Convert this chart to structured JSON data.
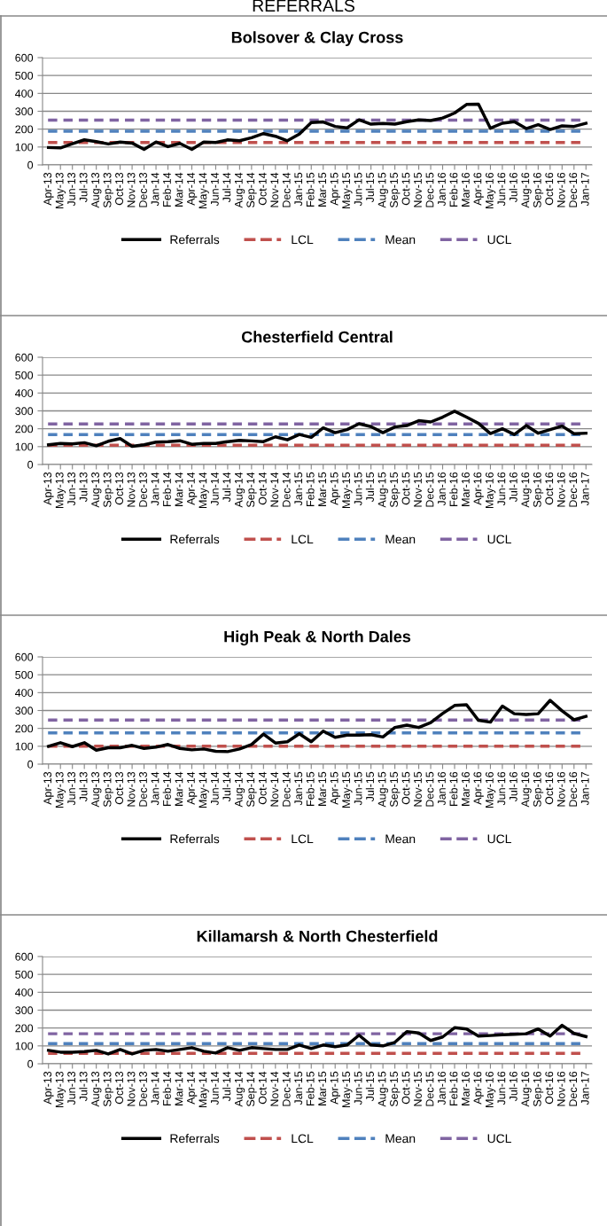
{
  "chart_data": [
    {
      "type": "line",
      "title": "Bolsover & Clay Cross",
      "annotations": [
        "REFERRALS"
      ],
      "categories": [
        "Apr-13",
        "May-13",
        "Jun-13",
        "Jul-13",
        "Aug-13",
        "Sep-13",
        "Oct-13",
        "Nov-13",
        "Dec-13",
        "Jan-14",
        "Feb-14",
        "Mar-14",
        "Apr-14",
        "May-14",
        "Jun-14",
        "Jul-14",
        "Aug-14",
        "Sep-14",
        "Oct-14",
        "Nov-14",
        "Dec-14",
        "Jan-15",
        "Feb-15",
        "Mar-15",
        "Apr-15",
        "May-15",
        "Jun-15",
        "Jul-15",
        "Aug-15",
        "Sep-15",
        "Oct-15",
        "Nov-15",
        "Dec-15",
        "Jan-16",
        "Feb-16",
        "Mar-16",
        "Apr-16",
        "May-16",
        "Jun-16",
        "Jul-16",
        "Aug-16",
        "Sep-16",
        "Oct-16",
        "Nov-16",
        "Dec-16",
        "Jan-17"
      ],
      "series": [
        {
          "name": "Referrals",
          "color": "#000000",
          "values": [
            97,
            95,
            118,
            140,
            130,
            117,
            128,
            122,
            87,
            128,
            102,
            120,
            87,
            128,
            125,
            140,
            135,
            152,
            175,
            160,
            135,
            172,
            237,
            240,
            215,
            207,
            252,
            228,
            232,
            228,
            242,
            252,
            248,
            262,
            290,
            338,
            340,
            205,
            233,
            242,
            203,
            225,
            198,
            218,
            215,
            233
          ]
        }
      ],
      "ref_lines": [
        {
          "axis": "y",
          "value": 125,
          "label": "LCL",
          "color": "#c0504d",
          "line_style": "dashed"
        },
        {
          "axis": "y",
          "value": 188,
          "label": "Mean",
          "color": "#4f81bd",
          "line_style": "dashed"
        },
        {
          "axis": "y",
          "value": 250,
          "label": "UCL",
          "color": "#8064a2",
          "line_style": "dashed"
        }
      ],
      "ylim": [
        0,
        600
      ],
      "yticks": [
        0,
        100,
        200,
        300,
        400,
        500,
        600
      ],
      "grid": "y",
      "legend": "bottom",
      "marker": "none",
      "line_style": "solid"
    },
    {
      "type": "line",
      "title": "Chesterfield Central",
      "categories": [
        "Apr-13",
        "May-13",
        "Jun-13",
        "Jul-13",
        "Aug-13",
        "Sep-13",
        "Oct-13",
        "Nov-13",
        "Dec-13",
        "Jan-14",
        "Feb-14",
        "Mar-14",
        "Apr-14",
        "May-14",
        "Jun-14",
        "Jul-14",
        "Aug-14",
        "Sep-14",
        "Oct-14",
        "Nov-14",
        "Dec-14",
        "Jan-15",
        "Feb-15",
        "Mar-15",
        "Apr-15",
        "May-15",
        "Jun-15",
        "Jul-15",
        "Aug-15",
        "Sep-15",
        "Oct-15",
        "Nov-15",
        "Dec-15",
        "Jan-16",
        "Feb-16",
        "Mar-16",
        "Apr-16",
        "May-16",
        "Jun-16",
        "Jul-16",
        "Aug-16",
        "Sep-16",
        "Oct-16",
        "Nov-16",
        "Dec-16",
        "Jan-17"
      ],
      "series": [
        {
          "name": "Referrals",
          "color": "#000000",
          "values": [
            110,
            118,
            115,
            122,
            105,
            130,
            145,
            102,
            110,
            125,
            128,
            133,
            113,
            118,
            118,
            128,
            135,
            132,
            128,
            155,
            138,
            168,
            152,
            205,
            178,
            195,
            228,
            212,
            178,
            210,
            218,
            245,
            238,
            265,
            298,
            265,
            230,
            173,
            200,
            168,
            218,
            175,
            195,
            215,
            172,
            175
          ]
        }
      ],
      "ref_lines": [
        {
          "axis": "y",
          "value": 108,
          "label": "LCL",
          "color": "#c0504d",
          "line_style": "dashed"
        },
        {
          "axis": "y",
          "value": 167,
          "label": "Mean",
          "color": "#4f81bd",
          "line_style": "dashed"
        },
        {
          "axis": "y",
          "value": 227,
          "label": "UCL",
          "color": "#8064a2",
          "line_style": "dashed"
        }
      ],
      "ylim": [
        0,
        600
      ],
      "yticks": [
        0,
        100,
        200,
        300,
        400,
        500,
        600
      ],
      "grid": "y",
      "legend": "bottom",
      "marker": "none",
      "line_style": "solid"
    },
    {
      "type": "line",
      "title": "High Peak & North Dales",
      "categories": [
        "Apr-13",
        "May-13",
        "Jun-13",
        "Jul-13",
        "Aug-13",
        "Sep-13",
        "Oct-13",
        "Nov-13",
        "Dec-13",
        "Jan-14",
        "Feb-14",
        "Mar-14",
        "Apr-14",
        "May-14",
        "Jun-14",
        "Jul-14",
        "Aug-14",
        "Sep-14",
        "Oct-14",
        "Nov-14",
        "Dec-14",
        "Jan-15",
        "Feb-15",
        "Mar-15",
        "Apr-15",
        "May-15",
        "Jun-15",
        "Jul-15",
        "Aug-15",
        "Sep-15",
        "Oct-15",
        "Nov-15",
        "Dec-15",
        "Jan-16",
        "Feb-16",
        "Mar-16",
        "Apr-16",
        "May-16",
        "Jun-16",
        "Jul-16",
        "Aug-16",
        "Sep-16",
        "Oct-16",
        "Nov-16",
        "Dec-16",
        "Jan-17"
      ],
      "series": [
        {
          "name": "Referrals",
          "color": "#000000",
          "values": [
            100,
            120,
            98,
            120,
            78,
            92,
            92,
            105,
            88,
            95,
            110,
            88,
            80,
            85,
            72,
            70,
            85,
            110,
            168,
            118,
            125,
            170,
            125,
            185,
            150,
            162,
            162,
            165,
            152,
            205,
            218,
            205,
            232,
            283,
            328,
            332,
            245,
            235,
            325,
            282,
            278,
            282,
            357,
            298,
            248,
            267
          ]
        }
      ],
      "ref_lines": [
        {
          "axis": "y",
          "value": 100,
          "label": "LCL",
          "color": "#c0504d",
          "line_style": "dashed"
        },
        {
          "axis": "y",
          "value": 175,
          "label": "Mean",
          "color": "#4f81bd",
          "line_style": "dashed"
        },
        {
          "axis": "y",
          "value": 247,
          "label": "UCL",
          "color": "#8064a2",
          "line_style": "dashed"
        }
      ],
      "ylim": [
        0,
        600
      ],
      "yticks": [
        0,
        100,
        200,
        300,
        400,
        500,
        600
      ],
      "grid": "y",
      "legend": "bottom",
      "marker": "none",
      "line_style": "solid"
    },
    {
      "type": "line",
      "title": "Killamarsh & North Chesterfield",
      "categories": [
        "Apr-13",
        "May-13",
        "Jun-13",
        "Jul-13",
        "Aug-13",
        "Sep-13",
        "Oct-13",
        "Nov-13",
        "Dec-13",
        "Jan-14",
        "Feb-14",
        "Mar-14",
        "Apr-14",
        "May-14",
        "Jun-14",
        "Jul-14",
        "Aug-14",
        "Sep-14",
        "Oct-14",
        "Nov-14",
        "Dec-14",
        "Jan-15",
        "Feb-15",
        "Mar-15",
        "Apr-15",
        "May-15",
        "Jun-15",
        "Jul-15",
        "Aug-15",
        "Sep-15",
        "Oct-15",
        "Nov-15",
        "Dec-15",
        "Jan-16",
        "Feb-16",
        "Mar-16",
        "Apr-16",
        "May-16",
        "Jun-16",
        "Jul-16",
        "Aug-16",
        "Sep-16",
        "Oct-16",
        "Nov-16",
        "Dec-16",
        "Jan-17"
      ],
      "series": [
        {
          "name": "Referrals",
          "color": "#000000",
          "values": [
            75,
            65,
            65,
            68,
            75,
            55,
            80,
            55,
            75,
            80,
            70,
            80,
            90,
            70,
            60,
            90,
            75,
            90,
            85,
            80,
            80,
            105,
            85,
            105,
            95,
            105,
            160,
            105,
            100,
            120,
            180,
            172,
            130,
            150,
            202,
            195,
            155,
            158,
            162,
            165,
            168,
            195,
            155,
            215,
            170,
            152
          ]
        }
      ],
      "ref_lines": [
        {
          "axis": "y",
          "value": 58,
          "label": "LCL",
          "color": "#c0504d",
          "line_style": "dashed"
        },
        {
          "axis": "y",
          "value": 113,
          "label": "Mean",
          "color": "#4f81bd",
          "line_style": "dashed"
        },
        {
          "axis": "y",
          "value": 168,
          "label": "UCL",
          "color": "#8064a2",
          "line_style": "dashed"
        }
      ],
      "ylim": [
        0,
        600
      ],
      "yticks": [
        0,
        100,
        200,
        300,
        400,
        500,
        600
      ],
      "grid": "y",
      "legend": "bottom",
      "marker": "none",
      "line_style": "solid"
    }
  ]
}
